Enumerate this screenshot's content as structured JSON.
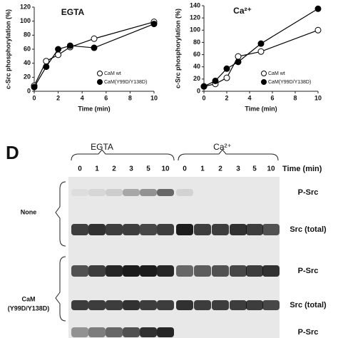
{
  "chart_data": [
    {
      "type": "line",
      "title": "EGTA",
      "x_label": "Time (min)",
      "y_label": "c-Src phosphorylation (%)",
      "x": [
        0,
        1,
        2,
        3,
        5,
        10
      ],
      "xlim": [
        0,
        10
      ],
      "xticks": [
        0,
        2,
        4,
        6,
        8,
        10
      ],
      "ylim": [
        0,
        120
      ],
      "yticks": [
        0,
        20,
        40,
        60,
        80,
        100,
        120
      ],
      "series": [
        {
          "name": "CaM wt",
          "color": "#000000",
          "marker": "open",
          "values": [
            8,
            43,
            52,
            63,
            75,
            99
          ]
        },
        {
          "name": "CaM(Y99D/Y138D)",
          "color": "#000000",
          "marker": "filled",
          "values": [
            6,
            35,
            60,
            65,
            62,
            96
          ]
        }
      ]
    },
    {
      "type": "line",
      "title": "Ca²⁺",
      "x_label": "Time (min)",
      "y_label": "c-Src phosphorylation (%)",
      "x": [
        0,
        1,
        2,
        3,
        5,
        10
      ],
      "xlim": [
        0,
        10
      ],
      "xticks": [
        0,
        2,
        4,
        6,
        8,
        10
      ],
      "ylim": [
        0,
        140
      ],
      "yticks": [
        0,
        20,
        40,
        60,
        80,
        100,
        120,
        140
      ],
      "series": [
        {
          "name": "CaM wt",
          "color": "#000000",
          "marker": "open",
          "values": [
            8,
            12,
            22,
            57,
            65,
            100
          ]
        },
        {
          "name": "CaM(Y99D/Y138D)",
          "color": "#000000",
          "marker": "filled",
          "values": [
            8,
            17,
            37,
            48,
            78,
            135
          ]
        }
      ]
    }
  ],
  "blot": {
    "panel": "D",
    "groups": [
      "EGTA",
      "Ca²⁺"
    ],
    "lanes": [
      "0",
      "1",
      "2",
      "3",
      "5",
      "10",
      "0",
      "1",
      "2",
      "3",
      "5",
      "10"
    ],
    "time_label": "Time (min)",
    "rows": [
      "P-Src",
      "Src (total)",
      "P-Src",
      "Src (total)",
      "P-Src"
    ],
    "conditions": [
      [
        "None"
      ],
      [
        "CaM",
        "(Y99D/Y138D)"
      ]
    ]
  }
}
